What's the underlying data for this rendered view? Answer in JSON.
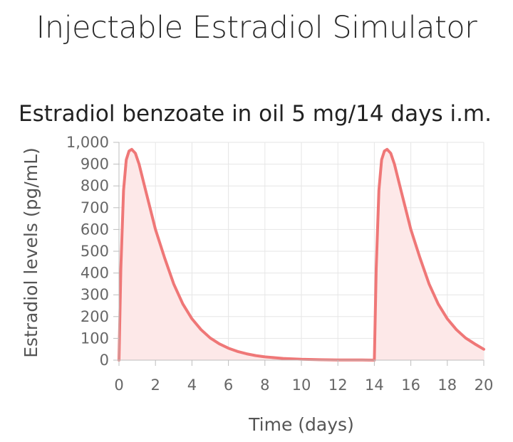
{
  "page": {
    "title": "Injectable Estradiol Simulator"
  },
  "chart_data": {
    "type": "area",
    "title": "Estradiol benzoate in oil 5 mg/14 days i.m.",
    "xlabel": "Time (days)",
    "ylabel": "Estradiol levels (pg/mL)",
    "xlim": [
      0,
      20
    ],
    "ylim": [
      0,
      1000
    ],
    "x_ticks": [
      0,
      2,
      4,
      6,
      8,
      10,
      12,
      14,
      16,
      18,
      20
    ],
    "y_ticks": [
      0,
      100,
      200,
      300,
      400,
      500,
      600,
      700,
      800,
      900,
      1000
    ],
    "y_tick_labels": [
      "0",
      "100",
      "200",
      "300",
      "400",
      "500",
      "600",
      "700",
      "800",
      "900",
      "1,000"
    ],
    "grid": true,
    "legend": "none",
    "series": [
      {
        "color": "#ef7777",
        "fill": "#fde8e8",
        "points": [
          [
            0,
            0
          ],
          [
            0.1,
            420
          ],
          [
            0.25,
            780
          ],
          [
            0.4,
            920
          ],
          [
            0.55,
            960
          ],
          [
            0.7,
            968
          ],
          [
            0.9,
            950
          ],
          [
            1.1,
            900
          ],
          [
            1.4,
            800
          ],
          [
            1.7,
            700
          ],
          [
            2.0,
            600
          ],
          [
            2.5,
            470
          ],
          [
            3.0,
            350
          ],
          [
            3.5,
            258
          ],
          [
            4.0,
            190
          ],
          [
            4.5,
            140
          ],
          [
            5.0,
            102
          ],
          [
            5.5,
            75
          ],
          [
            6.0,
            55
          ],
          [
            6.5,
            40
          ],
          [
            7.0,
            29
          ],
          [
            7.5,
            21
          ],
          [
            8.0,
            15
          ],
          [
            9.0,
            8
          ],
          [
            10.0,
            4
          ],
          [
            11.0,
            2
          ],
          [
            12.0,
            1
          ],
          [
            13.0,
            1
          ],
          [
            14.0,
            0
          ],
          [
            14.1,
            420
          ],
          [
            14.25,
            780
          ],
          [
            14.4,
            920
          ],
          [
            14.55,
            960
          ],
          [
            14.7,
            968
          ],
          [
            14.9,
            950
          ],
          [
            15.1,
            900
          ],
          [
            15.4,
            800
          ],
          [
            15.7,
            700
          ],
          [
            16.0,
            600
          ],
          [
            16.5,
            470
          ],
          [
            17.0,
            350
          ],
          [
            17.5,
            258
          ],
          [
            18.0,
            190
          ],
          [
            18.5,
            140
          ],
          [
            19.0,
            102
          ],
          [
            19.5,
            75
          ],
          [
            20.0,
            50
          ]
        ]
      }
    ]
  }
}
